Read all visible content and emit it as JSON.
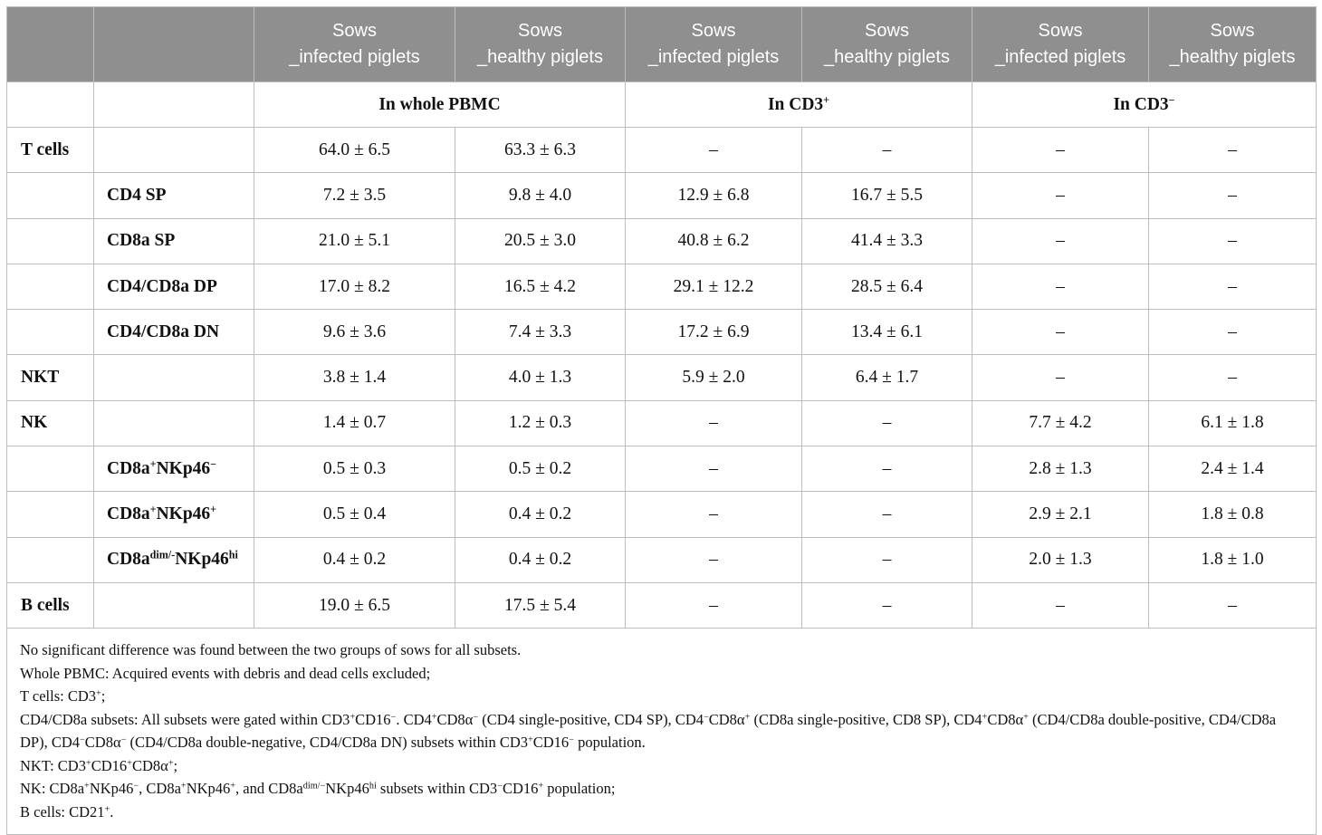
{
  "header": {
    "cols": [
      {
        "line1": "Sows",
        "line2": "_infected piglets"
      },
      {
        "line1": "Sows",
        "line2": "_healthy piglets"
      },
      {
        "line1": "Sows",
        "line2": "_infected piglets"
      },
      {
        "line1": "Sows",
        "line2": "_healthy piglets"
      },
      {
        "line1": "Sows",
        "line2": "_infected piglets"
      },
      {
        "line1": "Sows",
        "line2": "_healthy piglets"
      }
    ]
  },
  "groups": {
    "pbmc": "In whole PBMC",
    "cd3pos": {
      "base": "In CD3",
      "sup": "+"
    },
    "cd3neg": {
      "base": "In CD3",
      "sup": "−"
    }
  },
  "rows": [
    {
      "label": "T cells",
      "sub": "",
      "vals": [
        "64.0 ± 6.5",
        "63.3 ± 6.3",
        "–",
        "–",
        "–",
        "–"
      ]
    },
    {
      "label": "",
      "sub": "CD4 SP",
      "vals": [
        "7.2 ± 3.5",
        "9.8 ± 4.0",
        "12.9 ± 6.8",
        "16.7 ± 5.5",
        "–",
        "–"
      ]
    },
    {
      "label": "",
      "sub": "CD8a SP",
      "vals": [
        "21.0 ± 5.1",
        "20.5 ± 3.0",
        "40.8 ± 6.2",
        "41.4 ± 3.3",
        "–",
        "–"
      ]
    },
    {
      "label": "",
      "sub": "CD4/CD8a DP",
      "vals": [
        "17.0 ± 8.2",
        "16.5 ± 4.2",
        "29.1 ± 12.2",
        "28.5 ± 6.4",
        "–",
        "–"
      ]
    },
    {
      "label": "",
      "sub": "CD4/CD8a DN",
      "vals": [
        "9.6 ± 3.6",
        "7.4 ± 3.3",
        "17.2 ± 6.9",
        "13.4 ± 6.1",
        "–",
        "–"
      ]
    },
    {
      "label": "NKT",
      "sub": "",
      "vals": [
        "3.8 ± 1.4",
        "4.0 ± 1.3",
        "5.9 ± 2.0",
        "6.4 ± 1.7",
        "–",
        "–"
      ]
    },
    {
      "label": "NK",
      "sub": "",
      "vals": [
        "1.4 ± 0.7",
        "1.2 ± 0.3",
        "–",
        "–",
        "7.7 ± 4.2",
        "6.1 ± 1.8"
      ]
    },
    {
      "label": "",
      "sub": "",
      "sub_parts": {
        "a": "CD8a",
        "a_sup": "+",
        "b": "NKp46",
        "b_sup": "−"
      },
      "vals": [
        "0.5 ± 0.3",
        "0.5 ± 0.2",
        "–",
        "–",
        "2.8 ± 1.3",
        "2.4 ± 1.4"
      ]
    },
    {
      "label": "",
      "sub": "",
      "sub_parts": {
        "a": "CD8a",
        "a_sup": "+",
        "b": "NKp46",
        "b_sup": "+"
      },
      "vals": [
        "0.5 ± 0.4",
        "0.4 ± 0.2",
        "–",
        "–",
        "2.9 ± 2.1",
        "1.8 ± 0.8"
      ]
    },
    {
      "label": "",
      "sub": "",
      "sub_parts": {
        "a": "CD8a",
        "a_sup": "dim/-",
        "b": "NKp46",
        "b_sup": "hi"
      },
      "vals": [
        "0.4 ± 0.2",
        "0.4 ± 0.2",
        "–",
        "–",
        "2.0 ± 1.3",
        "1.8 ± 1.0"
      ]
    },
    {
      "label": "B cells",
      "sub": "",
      "vals": [
        "19.0 ± 6.5",
        "17.5 ± 5.4",
        "–",
        "–",
        "–",
        "–"
      ]
    }
  ],
  "notes": {
    "n1": "No significant difference was found between the two groups of sows for all subsets.",
    "n2": "Whole PBMC: Acquired events with debris and dead cells excluded;",
    "n3": {
      "t1": "T cells: CD3",
      "s1": "+",
      "t2": ";"
    },
    "n4": {
      "t1": "CD4/CD8a subsets: All subsets were gated within CD3",
      "s1": "+",
      "t2": "CD16",
      "s2": "−",
      "t3": ". CD4",
      "s3": "+",
      "t4": "CD8α",
      "s4": "−",
      "t5": " (CD4 single-positive, CD4 SP), CD4",
      "s5": "−",
      "t6": "CD8α",
      "s6": "+",
      "t7": " (CD8a single-positive, CD8 SP), CD4",
      "s7": "+",
      "t8": "CD8α",
      "s8": "+",
      "t9": " (CD4/CD8a double-positive, CD4/CD8a DP), CD4",
      "s9": "−",
      "t10": "CD8α",
      "s10": "−",
      "t11": " (CD4/CD8a double-negative, CD4/CD8a DN) subsets within CD3",
      "s11": "+",
      "t12": "CD16",
      "s12": "−",
      "t13": " population."
    },
    "n5": {
      "t1": "NKT: CD3",
      "s1": "+",
      "t2": "CD16",
      "s2": "+",
      "t3": "CD8α",
      "s3": "+",
      "t4": ";"
    },
    "n6": {
      "t1": "NK: CD8a",
      "s1": "+",
      "t2": "NKp46",
      "s2": "−",
      "t3": ", CD8a",
      "s3": "+",
      "t4": "NKp46",
      "s4": "+",
      "t5": ", and CD8a",
      "s5": "dim/−",
      "t6": "NKp46",
      "s6": "hi",
      "t7": " subsets within CD3",
      "s7": "−",
      "t8": "CD16",
      "s8": "+",
      "t9": " population;"
    },
    "n7": {
      "t1": "B cells: CD21",
      "s1": "+",
      "t2": "."
    }
  }
}
